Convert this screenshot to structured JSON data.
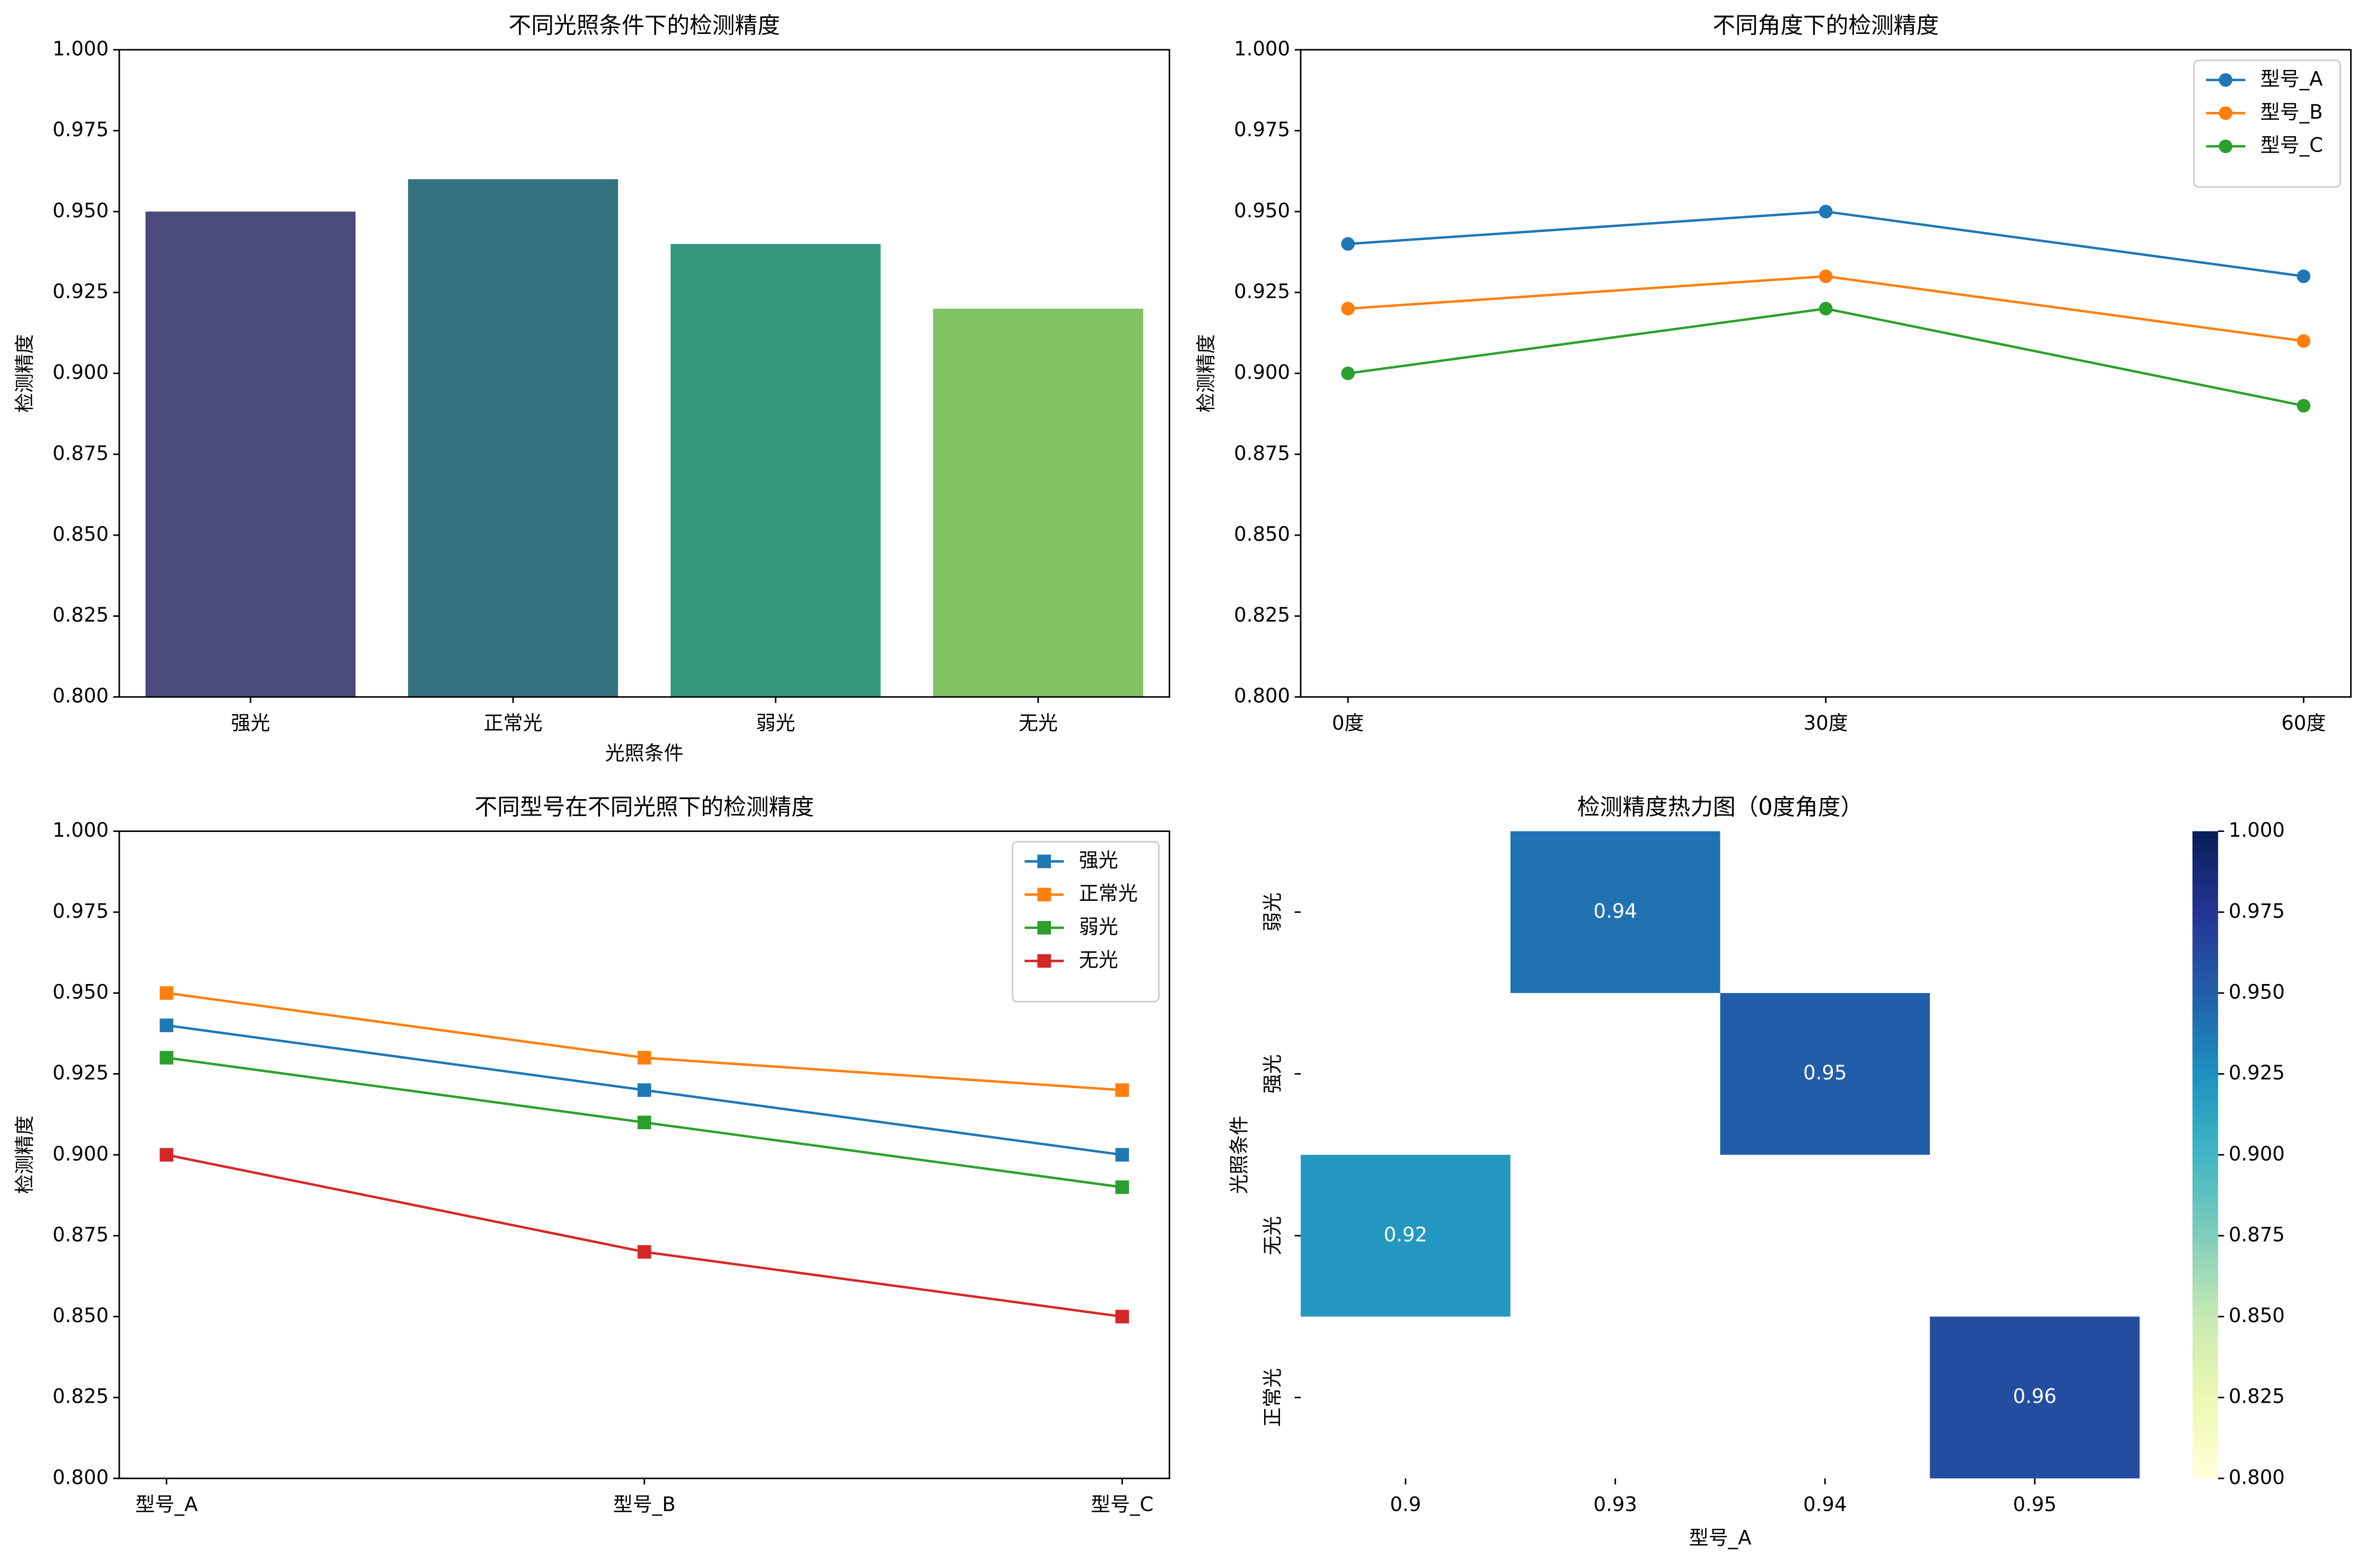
{
  "chart_data": [
    {
      "type": "bar",
      "title": "不同光照条件下的检测精度",
      "xlabel": "光照条件",
      "ylabel": "检测精度",
      "categories": [
        "强光",
        "正常光",
        "弱光",
        "无光"
      ],
      "values": [
        0.95,
        0.96,
        0.94,
        0.92
      ],
      "colors": [
        "#4a4b7a",
        "#357280",
        "#34977b",
        "#80c362"
      ],
      "ylim": [
        0.8,
        1.0
      ],
      "yticks": [
        {
          "value": 0.8,
          "label": "0.800"
        },
        {
          "value": 0.825,
          "label": "0.825"
        },
        {
          "value": 0.85,
          "label": "0.850"
        },
        {
          "value": 0.875,
          "label": "0.875"
        },
        {
          "value": 0.9,
          "label": "0.900"
        },
        {
          "value": 0.925,
          "label": "0.925"
        },
        {
          "value": 0.95,
          "label": "0.950"
        },
        {
          "value": 0.975,
          "label": "0.975"
        },
        {
          "value": 1.0,
          "label": "1.000"
        }
      ]
    },
    {
      "type": "line",
      "title": "不同角度下的检测精度",
      "ylabel": "检测精度",
      "marker": "circle",
      "legend": "upper right",
      "categories": [
        "0度",
        "30度",
        "60度"
      ],
      "series": [
        {
          "name": "型号_A",
          "color": "#1f77b4",
          "values": [
            0.94,
            0.95,
            0.93
          ]
        },
        {
          "name": "型号_B",
          "color": "#ff7f0e",
          "values": [
            0.92,
            0.93,
            0.91
          ]
        },
        {
          "name": "型号_C",
          "color": "#2ca02c",
          "values": [
            0.9,
            0.92,
            0.89
          ]
        }
      ],
      "ylim": [
        0.8,
        1.0
      ],
      "yticks": [
        {
          "value": 0.8,
          "label": "0.800"
        },
        {
          "value": 0.825,
          "label": "0.825"
        },
        {
          "value": 0.85,
          "label": "0.850"
        },
        {
          "value": 0.875,
          "label": "0.875"
        },
        {
          "value": 0.9,
          "label": "0.900"
        },
        {
          "value": 0.925,
          "label": "0.925"
        },
        {
          "value": 0.95,
          "label": "0.950"
        },
        {
          "value": 0.975,
          "label": "0.975"
        },
        {
          "value": 1.0,
          "label": "1.000"
        }
      ]
    },
    {
      "type": "line",
      "title": "不同型号在不同光照下的检测精度",
      "ylabel": "检测精度",
      "marker": "square",
      "legend": "upper right",
      "categories": [
        "型号_A",
        "型号_B",
        "型号_C"
      ],
      "series": [
        {
          "name": "强光",
          "color": "#1f77b4",
          "values": [
            0.94,
            0.92,
            0.9
          ]
        },
        {
          "name": "正常光",
          "color": "#ff7f0e",
          "values": [
            0.95,
            0.93,
            0.92
          ]
        },
        {
          "name": "弱光",
          "color": "#2ca02c",
          "values": [
            0.93,
            0.91,
            0.89
          ]
        },
        {
          "name": "无光",
          "color": "#d62728",
          "values": [
            0.9,
            0.87,
            0.85
          ]
        }
      ],
      "ylim": [
        0.8,
        1.0
      ],
      "yticks": [
        {
          "value": 0.8,
          "label": "0.800"
        },
        {
          "value": 0.825,
          "label": "0.825"
        },
        {
          "value": 0.85,
          "label": "0.850"
        },
        {
          "value": 0.875,
          "label": "0.875"
        },
        {
          "value": 0.9,
          "label": "0.900"
        },
        {
          "value": 0.925,
          "label": "0.925"
        },
        {
          "value": 0.95,
          "label": "0.950"
        },
        {
          "value": 0.975,
          "label": "0.975"
        },
        {
          "value": 1.0,
          "label": "1.000"
        }
      ]
    },
    {
      "type": "heatmap",
      "title": "检测精度热力图（0度角度）",
      "xlabel": "型号_A",
      "ylabel": "光照条件",
      "colormap": "YlGnBu",
      "x_categories": [
        "0.9",
        "0.93",
        "0.94",
        "0.95"
      ],
      "y_categories": [
        "弱光",
        "强光",
        "无光",
        "正常光"
      ],
      "values": [
        [
          null,
          0.94,
          null,
          null
        ],
        [
          null,
          null,
          0.95,
          null
        ],
        [
          0.92,
          null,
          null,
          null
        ],
        [
          null,
          null,
          null,
          0.96
        ]
      ],
      "clim": [
        0.8,
        1.0
      ],
      "cticks": [
        {
          "value": 0.8,
          "label": "0.800"
        },
        {
          "value": 0.825,
          "label": "0.825"
        },
        {
          "value": 0.85,
          "label": "0.850"
        },
        {
          "value": 0.875,
          "label": "0.875"
        },
        {
          "value": 0.9,
          "label": "0.900"
        },
        {
          "value": 0.925,
          "label": "0.925"
        },
        {
          "value": 0.95,
          "label": "0.950"
        },
        {
          "value": 0.975,
          "label": "0.975"
        },
        {
          "value": 1.0,
          "label": "1.000"
        }
      ]
    }
  ]
}
